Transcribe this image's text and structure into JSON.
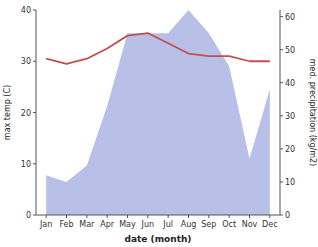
{
  "chart_data": {
    "type": "line",
    "categories": [
      "Jan",
      "Feb",
      "Mar",
      "Apr",
      "May",
      "Jun",
      "Jul",
      "Aug",
      "Sep",
      "Oct",
      "Nov",
      "Dec"
    ],
    "xlabel": "date (month)",
    "ylabel": "max temp (C)",
    "y2label": "med. precipitation (kg/m2)",
    "ylim": [
      0,
      40
    ],
    "yticks": [
      0,
      10,
      20,
      30,
      40
    ],
    "y2lim": [
      0,
      62
    ],
    "y2ticks": [
      0,
      10,
      20,
      30,
      40,
      50,
      60
    ],
    "grid": false,
    "series": [
      {
        "type": "area",
        "axis": "y2",
        "color": "#b8c0e8",
        "values": [
          12,
          10,
          15,
          33,
          55,
          55,
          55,
          62,
          55,
          45,
          17,
          38
        ]
      },
      {
        "type": "line",
        "color": "#c0504d",
        "values": [
          30.5,
          29.5,
          30.5,
          32.5,
          35.0,
          35.5,
          33.5,
          31.5,
          31.0,
          31.0,
          30.0,
          30.0
        ]
      }
    ]
  }
}
